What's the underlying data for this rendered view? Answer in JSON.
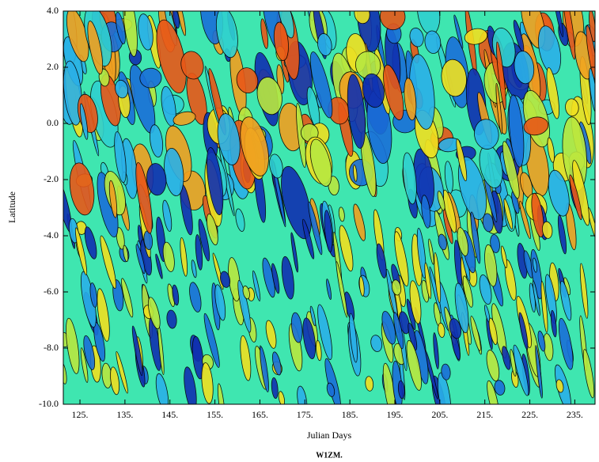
{
  "chart_data": {
    "type": "contour",
    "xlabel": "Julian Days",
    "ylabel": "Latitude",
    "caption": "W1ZM.",
    "xlim": [
      121.3,
      239.5
    ],
    "ylim": [
      -10,
      4
    ],
    "xticks": [
      {
        "value": 125,
        "label": "125."
      },
      {
        "value": 135,
        "label": "135."
      },
      {
        "value": 145,
        "label": "145."
      },
      {
        "value": 155,
        "label": "155."
      },
      {
        "value": 165,
        "label": "165."
      },
      {
        "value": 175,
        "label": "175."
      },
      {
        "value": 185,
        "label": "185."
      },
      {
        "value": 195,
        "label": "195."
      },
      {
        "value": 205,
        "label": "205."
      },
      {
        "value": 215,
        "label": "215."
      },
      {
        "value": 225,
        "label": "225."
      },
      {
        "value": 235,
        "label": "235."
      }
    ],
    "yticks": [
      {
        "value": 4,
        "label": "4.0"
      },
      {
        "value": 2,
        "label": "2.0"
      },
      {
        "value": 0,
        "label": "0.0"
      },
      {
        "value": -2,
        "label": "-2.0"
      },
      {
        "value": -4,
        "label": "-4.0"
      },
      {
        "value": -6,
        "label": "-6.0"
      },
      {
        "value": -8,
        "label": "-8.0"
      },
      {
        "value": -10,
        "label": "-10.0"
      }
    ]
  }
}
